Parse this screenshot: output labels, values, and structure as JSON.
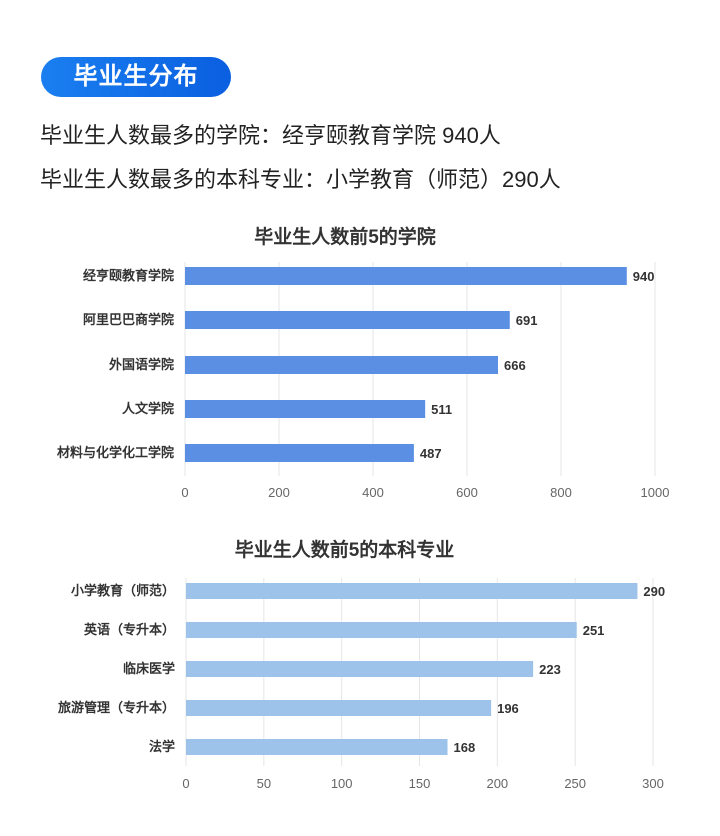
{
  "badge": "毕业生分布",
  "summary": [
    "毕业生人数最多的学院：经亨颐教育学院 940人",
    "毕业生人数最多的本科专业：小学教育（师范）290人"
  ],
  "chart_data": [
    {
      "type": "bar",
      "orientation": "horizontal",
      "title": "毕业生人数前5的学院",
      "categories": [
        "经亨颐教育学院",
        "阿里巴巴商学院",
        "外国语学院",
        "人文学院",
        "材料与化学化工学院"
      ],
      "values": [
        940,
        691,
        666,
        511,
        487
      ],
      "xlim": [
        0,
        1000
      ],
      "ticks": [
        0,
        200,
        400,
        600,
        800,
        1000
      ],
      "grid": true,
      "color": "#5b8fe3"
    },
    {
      "type": "bar",
      "orientation": "horizontal",
      "title": "毕业生人数前5的本科专业",
      "categories": [
        "小学教育（师范）",
        "英语（专升本）",
        "临床医学",
        "旅游管理（专升本）",
        "法学"
      ],
      "values": [
        290,
        251,
        223,
        196,
        168
      ],
      "xlim": [
        0,
        300
      ],
      "ticks": [
        0,
        50,
        100,
        150,
        200,
        250,
        300
      ],
      "grid": true,
      "color": "#9dc3ea"
    }
  ]
}
